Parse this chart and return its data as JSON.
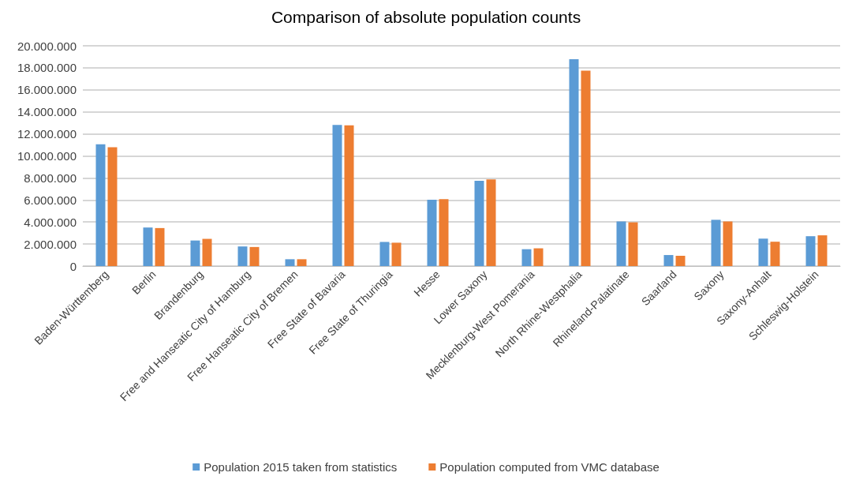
{
  "chart_data": {
    "type": "bar",
    "title": "Comparison of absolute population counts",
    "categories": [
      "Baden-Württemberg",
      "Berlin",
      "Brandenburg",
      "Free and Hanseatic City of Hamburg",
      "Free Hanseatic City of Bremen",
      "Free State of Bavaria",
      "Free State of Thuringia",
      "Hesse",
      "Lower Saxony",
      "Mecklenburg-West Pomerania",
      "North Rhine-Westphalia",
      "Rhineland-Palatinate",
      "Saarland",
      "Saxony",
      "Saxony-Anhalt",
      "Schleswig-Holstein"
    ],
    "series": [
      {
        "name": "Population 2015 taken from statistics",
        "color": "#5b9bd5",
        "values": [
          11050000,
          3500000,
          2320000,
          1780000,
          620000,
          12820000,
          2190000,
          6030000,
          7740000,
          1530000,
          18790000,
          4050000,
          1000000,
          4200000,
          2490000,
          2710000
        ]
      },
      {
        "name": "Population computed from VMC database",
        "color": "#ed7d31",
        "values": [
          10780000,
          3450000,
          2470000,
          1730000,
          620000,
          12770000,
          2120000,
          6080000,
          7860000,
          1610000,
          17740000,
          3970000,
          930000,
          4050000,
          2210000,
          2790000
        ]
      }
    ],
    "ylim": [
      0,
      20000000
    ],
    "yticks": [
      {
        "value": 0,
        "label": "0"
      },
      {
        "value": 2000000,
        "label": "2.000.000"
      },
      {
        "value": 4000000,
        "label": "4.000.000"
      },
      {
        "value": 6000000,
        "label": "6.000.000"
      },
      {
        "value": 8000000,
        "label": "8.000.000"
      },
      {
        "value": 10000000,
        "label": "10.000.000"
      },
      {
        "value": 12000000,
        "label": "12.000.000"
      },
      {
        "value": 14000000,
        "label": "14.000.000"
      },
      {
        "value": 16000000,
        "label": "16.000.000"
      },
      {
        "value": 18000000,
        "label": "18.000.000"
      },
      {
        "value": 20000000,
        "label": "20.000.000"
      }
    ],
    "grid": "y",
    "legend": "bottom"
  }
}
